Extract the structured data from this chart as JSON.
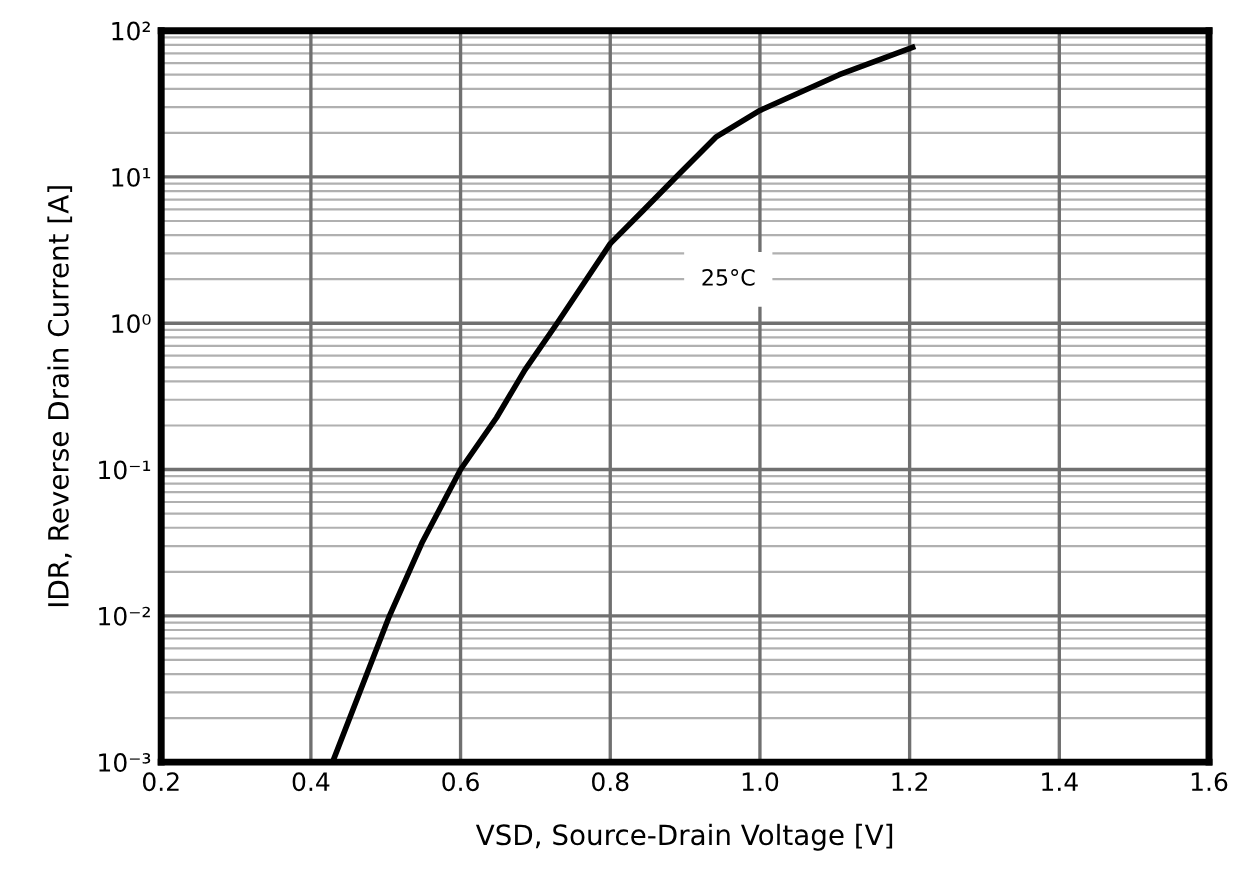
{
  "chart_data": {
    "type": "line",
    "xlabel": "VSD, Source-Drain Voltage [V]",
    "ylabel": "IDR, Reverse Drain Current [A]",
    "log": "y",
    "grid": true,
    "marker": "none",
    "line_style": "solid",
    "xlim": [
      0.2,
      1.6
    ],
    "xticks": [
      {
        "value": 0.2,
        "label": "0.2"
      },
      {
        "value": 0.4,
        "label": "0.4"
      },
      {
        "value": 0.6,
        "label": "0.6"
      },
      {
        "value": 0.8,
        "label": "0.8"
      },
      {
        "value": 1.0,
        "label": "1.0"
      },
      {
        "value": 1.2,
        "label": "1.2"
      },
      {
        "value": 1.4,
        "label": "1.4"
      },
      {
        "value": 1.6,
        "label": "1.6"
      }
    ],
    "ylim": [
      0.001,
      100
    ],
    "yticks": [
      {
        "value": 0.001,
        "label": "10⁻³"
      },
      {
        "value": 0.01,
        "label": "10⁻²"
      },
      {
        "value": 0.1,
        "label": "10⁻¹"
      },
      {
        "value": 1,
        "label": "10⁰"
      },
      {
        "value": 10,
        "label": "10¹"
      },
      {
        "value": 100,
        "label": "10²"
      }
    ],
    "series": [
      {
        "color": "#000000",
        "x": [
          0.429,
          0.505,
          0.549,
          0.6,
          0.648,
          0.686,
          0.729,
          0.8,
          0.844,
          0.888,
          0.941,
          1.0,
          1.106,
          1.204
        ],
        "values": [
          0.001,
          0.01,
          0.032,
          0.1,
          0.226,
          0.48,
          1.0,
          3.5,
          5.9,
          10,
          18.7,
          28.5,
          50,
          77
        ]
      }
    ],
    "annotations": [
      "25°C"
    ]
  }
}
